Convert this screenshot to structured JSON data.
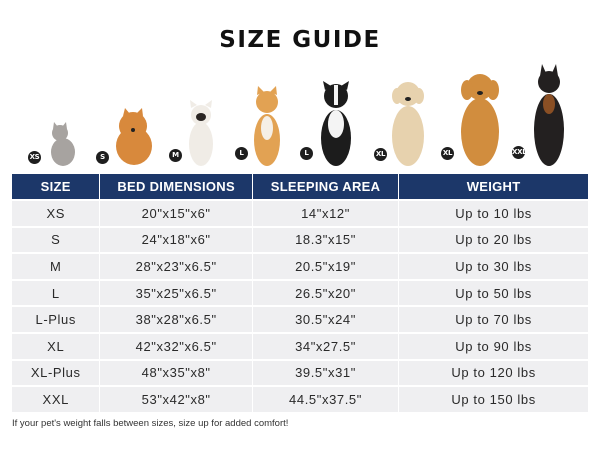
{
  "title": "SIZE GUIDE",
  "pets": [
    {
      "badge": "XS",
      "animal": "cat-icon",
      "fur": "#a7a3a0"
    },
    {
      "badge": "S",
      "animal": "pomeranian-icon",
      "fur": "#d8893c"
    },
    {
      "badge": "M",
      "animal": "french-bulldog-icon",
      "fur": "#f0ece6"
    },
    {
      "badge": "L",
      "animal": "shiba-inu-icon",
      "fur": "#e2a253"
    },
    {
      "badge": "L",
      "animal": "border-collie-icon",
      "fur": "#1c1c1c"
    },
    {
      "badge": "XL",
      "animal": "labrador-icon",
      "fur": "#e7d2ae"
    },
    {
      "badge": "XL",
      "animal": "golden-retriever-icon",
      "fur": "#d18d3e"
    },
    {
      "badge": "XXL",
      "animal": "doberman-icon",
      "fur": "#232020"
    }
  ],
  "table": {
    "headers": [
      "SIZE",
      "BED DIMENSIONS",
      "SLEEPING AREA",
      "WEIGHT"
    ],
    "rows": [
      [
        "XS",
        "20\"x15\"x6\"",
        "14\"x12\"",
        "Up to 10 lbs"
      ],
      [
        "S",
        "24\"x18\"x6\"",
        "18.3\"x15\"",
        "Up to 20 lbs"
      ],
      [
        "M",
        "28\"x23\"x6.5\"",
        "20.5\"x19\"",
        "Up to 30 lbs"
      ],
      [
        "L",
        "35\"x25\"x6.5\"",
        "26.5\"x20\"",
        "Up to 50 lbs"
      ],
      [
        "L-Plus",
        "38\"x28\"x6.5\"",
        "30.5\"x24\"",
        "Up to 70 lbs"
      ],
      [
        "XL",
        "42\"x32\"x6.5\"",
        "34\"x27.5\"",
        "Up to 90 lbs"
      ],
      [
        "XL-Plus",
        "48\"x35\"x8\"",
        "39.5\"x31\"",
        "Up to 120 lbs"
      ],
      [
        "XXL",
        "53\"x42\"x8\"",
        "44.5\"x37.5\"",
        "Up to 150 lbs"
      ]
    ]
  },
  "footnote": "If your pet's weight falls between sizes, size up for added comfort!",
  "colors": {
    "header_bg": "#1c3769",
    "row_bg": "#efeff1",
    "badge_bg": "#1e1e1e"
  }
}
